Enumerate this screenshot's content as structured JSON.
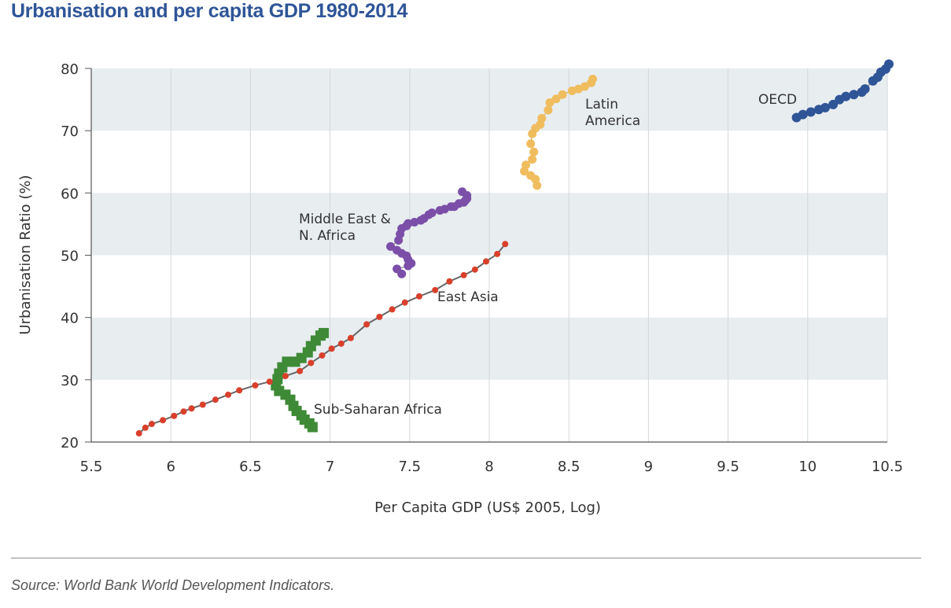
{
  "title": "Urbanisation and per capita GDP 1980-2014",
  "source": "Source: World Bank World Development Indicators.",
  "chart_data": {
    "type": "scatter",
    "title": "Urbanisation and per capita GDP 1980-2014",
    "xlabel": "Per Capita GDP (US$ 2005, Log)",
    "ylabel": "Urbanisation Ratio (%)",
    "xlim": [
      5.5,
      10.5
    ],
    "ylim": [
      20,
      80
    ],
    "xticks": [
      "5.5",
      "6",
      "6.5",
      "7",
      "7.5",
      "8",
      "8.5",
      "9",
      "9.5",
      "10",
      "10.5"
    ],
    "yticks": [
      "20",
      "30",
      "40",
      "50",
      "60",
      "70",
      "80"
    ],
    "grid": "vertical lines at x ticks; alternating horizontal shaded bands",
    "band_color": "#e8edf0",
    "series": [
      {
        "name": "East Asia",
        "label": "East Asia",
        "color": "#d9402b",
        "marker": "small-circle-with-line",
        "x": [
          5.8,
          5.84,
          5.88,
          5.95,
          6.02,
          6.08,
          6.13,
          6.2,
          6.28,
          6.36,
          6.43,
          6.53,
          6.62,
          6.72,
          6.81,
          6.88,
          6.95,
          7.01,
          7.07,
          7.13,
          7.23,
          7.31,
          7.39,
          7.47,
          7.56,
          7.66,
          7.75,
          7.84,
          7.91,
          7.98,
          8.05,
          8.1
        ],
        "y": [
          21.4,
          22.3,
          22.9,
          23.5,
          24.2,
          24.9,
          25.4,
          26.0,
          26.8,
          27.6,
          28.3,
          29.1,
          29.7,
          30.6,
          31.4,
          32.7,
          33.9,
          35.0,
          35.8,
          36.7,
          38.9,
          40.1,
          41.3,
          42.4,
          43.4,
          44.4,
          45.8,
          46.8,
          47.7,
          49.0,
          50.2,
          51.8
        ]
      },
      {
        "name": "Sub-Saharan Africa",
        "label": "Sub-Saharan Africa",
        "color": "#3e8a36",
        "marker": "square",
        "x": [
          6.89,
          6.87,
          6.84,
          6.82,
          6.79,
          6.77,
          6.75,
          6.72,
          6.68,
          6.66,
          6.67,
          6.68,
          6.7,
          6.73,
          6.78,
          6.82,
          6.86,
          6.88,
          6.91,
          6.94,
          6.96
        ],
        "y": [
          22.4,
          23.0,
          23.6,
          24.3,
          25.0,
          25.8,
          26.8,
          27.6,
          28.2,
          29.1,
          30.1,
          31.0,
          32.0,
          32.9,
          32.9,
          33.5,
          34.4,
          35.4,
          36.3,
          37.1,
          37.5
        ]
      },
      {
        "name": "Middle East & N. Africa",
        "label": "Middle East & N. Africa",
        "color": "#7b4fa8",
        "marker": "circle",
        "x": [
          7.45,
          7.42,
          7.49,
          7.51,
          7.49,
          7.48,
          7.45,
          7.42,
          7.38,
          7.43,
          7.44,
          7.45,
          7.48,
          7.49,
          7.53,
          7.57,
          7.59,
          7.62,
          7.64,
          7.69,
          7.72,
          7.76,
          7.78,
          7.81,
          7.84,
          7.85,
          7.86,
          7.86,
          7.83
        ],
        "y": [
          47.0,
          47.8,
          48.3,
          48.7,
          49.3,
          49.9,
          50.3,
          50.8,
          51.4,
          52.4,
          53.4,
          54.3,
          54.7,
          55.1,
          55.3,
          55.6,
          55.9,
          56.5,
          56.8,
          57.2,
          57.4,
          57.8,
          57.8,
          58.3,
          58.5,
          58.8,
          59.1,
          59.6,
          60.2
        ]
      },
      {
        "name": "Latin America",
        "label": "Latin America",
        "color": "#f0bd5e",
        "marker": "circle",
        "x": [
          8.3,
          8.29,
          8.26,
          8.22,
          8.23,
          8.27,
          8.28,
          8.26,
          8.27,
          8.29,
          8.32,
          8.33,
          8.37,
          8.38,
          8.42,
          8.46,
          8.52,
          8.56,
          8.6,
          8.64,
          8.65
        ],
        "y": [
          61.2,
          62.2,
          62.8,
          63.5,
          64.5,
          65.4,
          66.6,
          67.9,
          69.5,
          70.4,
          71.0,
          72.0,
          73.3,
          74.5,
          75.1,
          75.8,
          76.4,
          76.7,
          77.1,
          77.7,
          78.3
        ]
      },
      {
        "name": "OECD",
        "label": "OECD",
        "color": "#2f5597",
        "marker": "circle",
        "x": [
          9.93,
          9.97,
          10.02,
          10.07,
          10.11,
          10.16,
          10.2,
          10.24,
          10.29,
          10.34,
          10.36,
          10.41,
          10.44,
          10.46,
          10.49,
          10.51
        ],
        "y": [
          72.1,
          72.6,
          73.0,
          73.4,
          73.7,
          74.2,
          75.0,
          75.5,
          75.8,
          76.2,
          76.7,
          78.0,
          78.6,
          79.4,
          79.9,
          80.7
        ]
      }
    ]
  }
}
